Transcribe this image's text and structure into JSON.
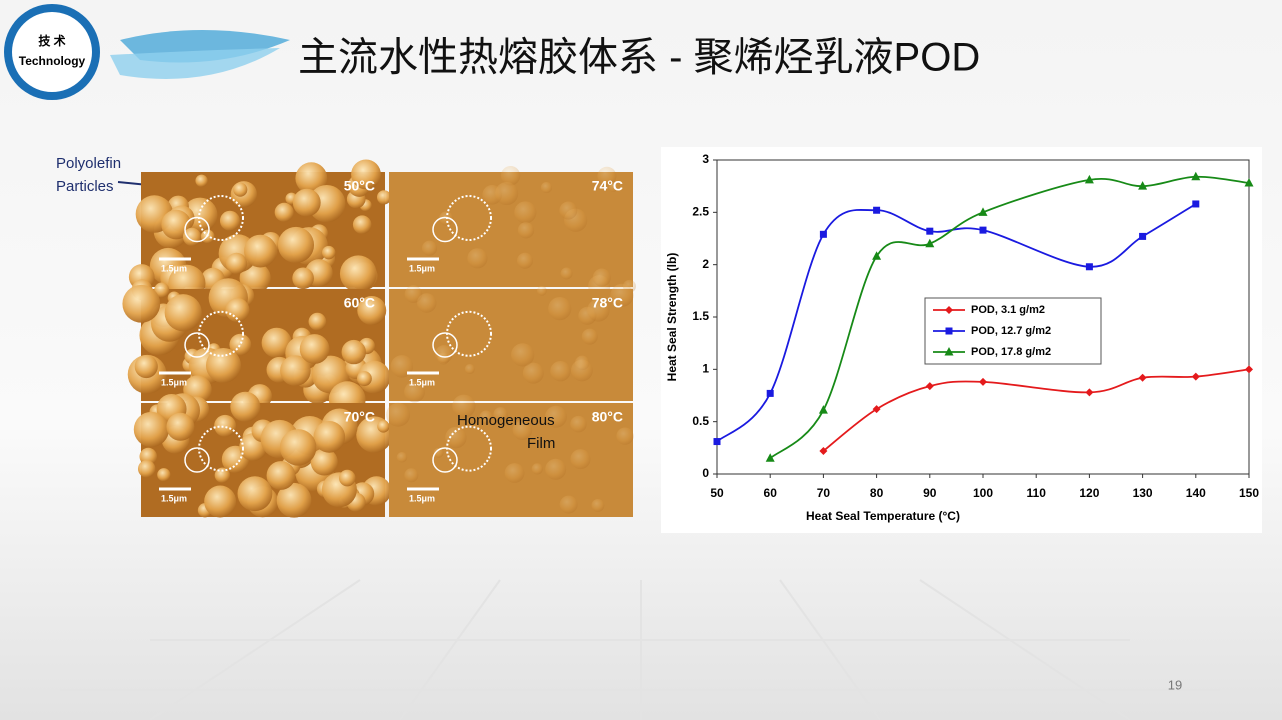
{
  "header": {
    "logo_line1": "技 术",
    "logo_line2": "Technology",
    "title": "主流水性热熔胶体系 - 聚烯烃乳液POD"
  },
  "afm": {
    "callout_line1": "Polyolefin",
    "callout_line2": "Particles",
    "film_line1": "Homogeneous",
    "film_line2": "Film",
    "panels": [
      {
        "temp": "50°C",
        "scale": "1.5μm"
      },
      {
        "temp": "74°C",
        "scale": "1.5μm"
      },
      {
        "temp": "60°C",
        "scale": "1.5μm"
      },
      {
        "temp": "78°C",
        "scale": "1.5μm"
      },
      {
        "temp": "70°C",
        "scale": "1.5μm"
      },
      {
        "temp": "80°C",
        "scale": "1.5μm"
      }
    ]
  },
  "chart_data": {
    "type": "line",
    "x_label": "Heat Seal Temperature (°C)",
    "y_label": "Heat Seal Strength (lb)",
    "xlim": [
      50,
      150
    ],
    "xticks": [
      50,
      60,
      70,
      80,
      90,
      100,
      110,
      120,
      130,
      140,
      150
    ],
    "ylim": [
      0,
      3
    ],
    "yticks": [
      0,
      0.5,
      1,
      1.5,
      2,
      2.5,
      3
    ],
    "smooth": true,
    "legend": "center",
    "series": [
      {
        "name": "POD, 3.1 g/m2",
        "color": "#e41a1c",
        "marker": "diamond",
        "x": [
          70,
          80,
          90,
          100,
          120,
          130,
          140,
          150
        ],
        "values": [
          0.22,
          0.62,
          0.84,
          0.88,
          0.78,
          0.92,
          0.93,
          1.0
        ]
      },
      {
        "name": "POD, 12.7 g/m2",
        "color": "#1a1ae0",
        "marker": "square",
        "x": [
          50,
          60,
          70,
          80,
          90,
          100,
          120,
          130,
          140
        ],
        "values": [
          0.31,
          0.77,
          2.29,
          2.52,
          2.32,
          2.33,
          1.98,
          2.27,
          2.58
        ]
      },
      {
        "name": "POD, 17.8 g/m2",
        "color": "#178a17",
        "marker": "triangle",
        "x": [
          60,
          70,
          80,
          90,
          100,
          120,
          130,
          140,
          150
        ],
        "values": [
          0.15,
          0.61,
          2.08,
          2.2,
          2.5,
          2.81,
          2.75,
          2.84,
          2.78
        ]
      }
    ]
  },
  "page_number": "19"
}
